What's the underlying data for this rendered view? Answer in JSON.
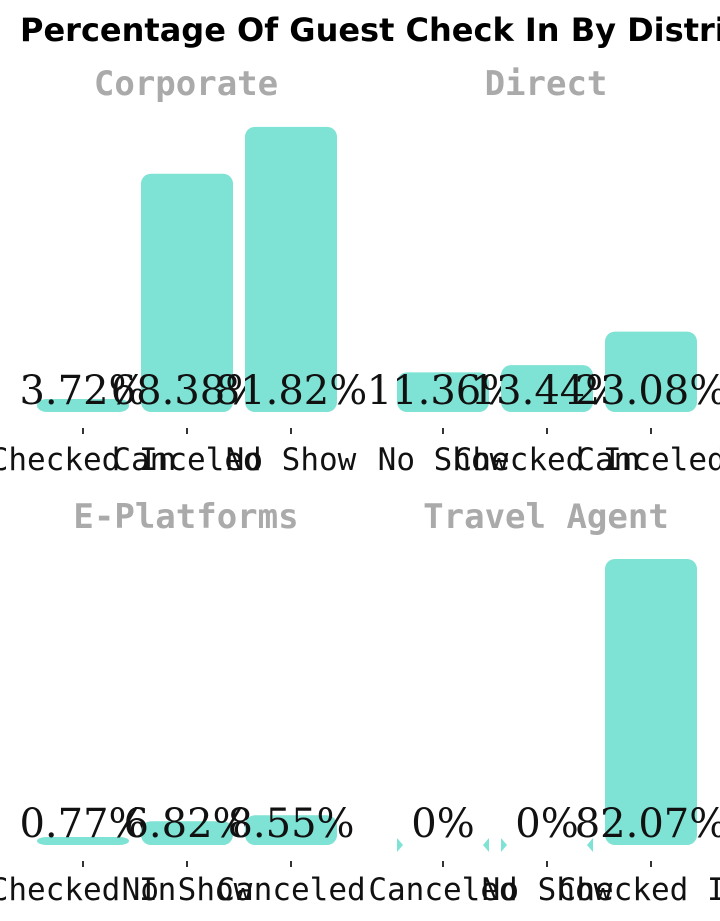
{
  "chart_data": {
    "type": "bar",
    "title": "Percentage Of Guest Check In By Distribution Channel",
    "bar_color": "#7ee2d4",
    "panels": [
      {
        "name": "Corporate",
        "categories": [
          "Checked In",
          "Canceled",
          "No Show"
        ],
        "values": [
          3.72,
          68.38,
          81.82
        ],
        "labels": [
          "3.72%",
          "68.38%",
          "81.82%"
        ]
      },
      {
        "name": "Direct",
        "categories": [
          "No Show",
          "Checked In",
          "Canceled"
        ],
        "values": [
          11.36,
          13.44,
          23.08
        ],
        "labels": [
          "11.36%",
          "13.44%",
          "23.08%"
        ]
      },
      {
        "name": "E-Platforms",
        "categories": [
          "Checked In",
          "No Show",
          "Canceled"
        ],
        "values": [
          0.77,
          6.82,
          8.55
        ],
        "labels": [
          "0.77%",
          "6.82%",
          "8.55%"
        ]
      },
      {
        "name": "Travel Agent",
        "categories": [
          "Canceled",
          "No Show",
          "Checked In"
        ],
        "values": [
          0,
          0,
          82.07
        ],
        "labels": [
          "0%",
          "0%",
          "82.07%"
        ]
      }
    ]
  }
}
